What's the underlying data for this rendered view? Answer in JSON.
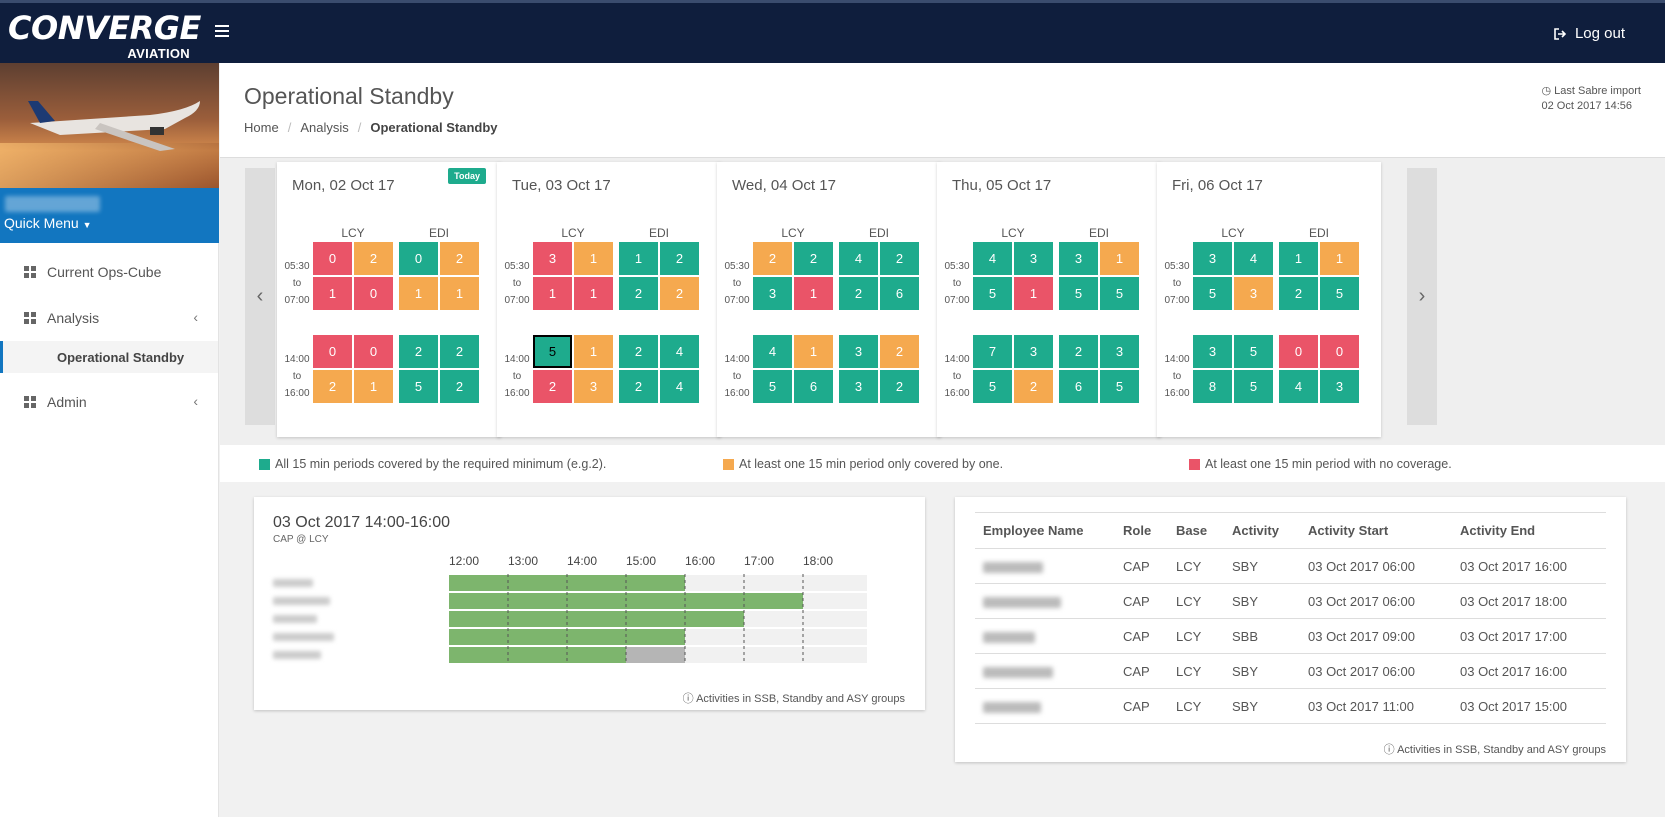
{
  "brand": {
    "name": "CONVERGE",
    "sub": "AVIATION"
  },
  "topbar": {
    "logout_label": "Log out",
    "menu_icon": "hamburger-icon",
    "logout_icon": "sign-out-icon"
  },
  "sidebar": {
    "quick_menu_label": "Quick Menu",
    "items": [
      {
        "label": "Current Ops-Cube",
        "icon": "grid-icon"
      },
      {
        "label": "Analysis",
        "icon": "grid-icon"
      },
      {
        "label": "Operational Standby"
      },
      {
        "label": "Admin",
        "icon": "grid-icon"
      }
    ]
  },
  "header": {
    "title": "Operational Standby",
    "breadcrumb": [
      "Home",
      "Analysis",
      "Operational Standby"
    ],
    "import_label": "Last Sabre import",
    "import_time": "02 Oct 2017 14:56"
  },
  "schedule": {
    "bases": [
      "LCY",
      "EDI"
    ],
    "slots": [
      {
        "start": "05:30",
        "to": "to",
        "end": "07:00"
      },
      {
        "start": "14:00",
        "to": "to",
        "end": "16:00"
      }
    ],
    "today_label": "Today",
    "days": [
      {
        "title": "Mon, 02 Oct 17",
        "today": true,
        "slots": [
          {
            "LCY": [
              [
                0,
                2
              ],
              [
                1,
                0
              ]
            ],
            "EDI": [
              [
                0,
                2
              ],
              [
                1,
                1
              ]
            ],
            "LCYc": [
              [
                "red",
                "orange"
              ],
              [
                "red",
                "red"
              ]
            ],
            "EDIc": [
              [
                "green",
                "orange"
              ],
              [
                "orange",
                "orange"
              ]
            ]
          },
          {
            "LCY": [
              [
                0,
                0
              ],
              [
                2,
                1
              ]
            ],
            "EDI": [
              [
                2,
                2
              ],
              [
                5,
                2
              ]
            ],
            "LCYc": [
              [
                "red",
                "red"
              ],
              [
                "orange",
                "orange"
              ]
            ],
            "EDIc": [
              [
                "green",
                "green"
              ],
              [
                "green",
                "green"
              ]
            ]
          }
        ]
      },
      {
        "title": "Tue, 03 Oct 17",
        "today": false,
        "slots": [
          {
            "LCY": [
              [
                3,
                1
              ],
              [
                1,
                1
              ]
            ],
            "EDI": [
              [
                1,
                2
              ],
              [
                2,
                2
              ]
            ],
            "LCYc": [
              [
                "red",
                "orange"
              ],
              [
                "red",
                "red"
              ]
            ],
            "EDIc": [
              [
                "green",
                "green"
              ],
              [
                "green",
                "orange"
              ]
            ]
          },
          {
            "LCY": [
              [
                5,
                1
              ],
              [
                2,
                3
              ]
            ],
            "EDI": [
              [
                2,
                4
              ],
              [
                2,
                4
              ]
            ],
            "LCYc": [
              [
                "green",
                "orange"
              ],
              [
                "red",
                "orange"
              ]
            ],
            "EDIc": [
              [
                "green",
                "green"
              ],
              [
                "green",
                "green"
              ]
            ],
            "selected": "LCY-0-0"
          }
        ]
      },
      {
        "title": "Wed, 04 Oct 17",
        "today": false,
        "slots": [
          {
            "LCY": [
              [
                2,
                2
              ],
              [
                3,
                1
              ]
            ],
            "EDI": [
              [
                4,
                2
              ],
              [
                2,
                6
              ]
            ],
            "LCYc": [
              [
                "orange",
                "green"
              ],
              [
                "green",
                "red"
              ]
            ],
            "EDIc": [
              [
                "green",
                "green"
              ],
              [
                "green",
                "green"
              ]
            ]
          },
          {
            "LCY": [
              [
                4,
                1
              ],
              [
                5,
                6
              ]
            ],
            "EDI": [
              [
                3,
                2
              ],
              [
                3,
                2
              ]
            ],
            "LCYc": [
              [
                "green",
                "orange"
              ],
              [
                "green",
                "green"
              ]
            ],
            "EDIc": [
              [
                "green",
                "orange"
              ],
              [
                "green",
                "green"
              ]
            ]
          }
        ]
      },
      {
        "title": "Thu, 05 Oct 17",
        "today": false,
        "slots": [
          {
            "LCY": [
              [
                4,
                3
              ],
              [
                5,
                1
              ]
            ],
            "EDI": [
              [
                3,
                1
              ],
              [
                5,
                5
              ]
            ],
            "LCYc": [
              [
                "green",
                "green"
              ],
              [
                "green",
                "red"
              ]
            ],
            "EDIc": [
              [
                "green",
                "orange"
              ],
              [
                "green",
                "green"
              ]
            ]
          },
          {
            "LCY": [
              [
                7,
                3
              ],
              [
                5,
                2
              ]
            ],
            "EDI": [
              [
                2,
                3
              ],
              [
                6,
                5
              ]
            ],
            "LCYc": [
              [
                "green",
                "green"
              ],
              [
                "green",
                "orange"
              ]
            ],
            "EDIc": [
              [
                "green",
                "green"
              ],
              [
                "green",
                "green"
              ]
            ]
          }
        ]
      },
      {
        "title": "Fri, 06 Oct 17",
        "today": false,
        "slots": [
          {
            "LCY": [
              [
                3,
                4
              ],
              [
                5,
                3
              ]
            ],
            "EDI": [
              [
                1,
                1
              ],
              [
                2,
                5
              ]
            ],
            "LCYc": [
              [
                "green",
                "green"
              ],
              [
                "green",
                "orange"
              ]
            ],
            "EDIc": [
              [
                "green",
                "orange"
              ],
              [
                "green",
                "green"
              ]
            ]
          },
          {
            "LCY": [
              [
                3,
                5
              ],
              [
                8,
                5
              ]
            ],
            "EDI": [
              [
                0,
                0
              ],
              [
                4,
                3
              ]
            ],
            "LCYc": [
              [
                "green",
                "green"
              ],
              [
                "green",
                "green"
              ]
            ],
            "EDIc": [
              [
                "red",
                "red"
              ],
              [
                "green",
                "green"
              ]
            ]
          }
        ]
      }
    ]
  },
  "legend": [
    {
      "color": "#1eab8d",
      "text": "All 15 min periods covered by the required minimum (e.g.2)."
    },
    {
      "color": "#f5a94f",
      "text": "At least one 15 min period only covered by one."
    },
    {
      "color": "#ea5468",
      "text": "At least one 15 min period with no coverage."
    }
  ],
  "colors": {
    "green": "#1eab8d",
    "orange": "#f5a94f",
    "red": "#ea5468",
    "bar": "#7db56d",
    "bar_grey": "#b5b5b5"
  },
  "gantt": {
    "title": "03 Oct 2017 14:00-16:00",
    "subtitle": "CAP @ LCY",
    "hours": [
      "12:00",
      "13:00",
      "14:00",
      "15:00",
      "16:00",
      "17:00",
      "18:00"
    ],
    "axis_start_hour": 12,
    "axis_end_hour": 19.0,
    "rows": [
      {
        "start": 12,
        "end": 16,
        "grey_end": null
      },
      {
        "start": 12,
        "end": 18,
        "grey_end": null
      },
      {
        "start": 12,
        "end": 17,
        "grey_end": null
      },
      {
        "start": 12,
        "end": 16,
        "grey_end": null
      },
      {
        "start": 12,
        "end": 15,
        "grey_end": 16
      }
    ],
    "note": "Activities in SSB, Standby and ASY groups",
    "note_icon": "info-icon"
  },
  "employees": {
    "headers": [
      "Employee Name",
      "Role",
      "Base",
      "Activity",
      "Activity Start",
      "Activity End"
    ],
    "rows": [
      {
        "role": "CAP",
        "base": "LCY",
        "activity": "SBY",
        "start": "03 Oct 2017 06:00",
        "end": "03 Oct 2017 16:00"
      },
      {
        "role": "CAP",
        "base": "LCY",
        "activity": "SBY",
        "start": "03 Oct 2017 06:00",
        "end": "03 Oct 2017 18:00"
      },
      {
        "role": "CAP",
        "base": "LCY",
        "activity": "SBB",
        "start": "03 Oct 2017 09:00",
        "end": "03 Oct 2017 17:00"
      },
      {
        "role": "CAP",
        "base": "LCY",
        "activity": "SBY",
        "start": "03 Oct 2017 06:00",
        "end": "03 Oct 2017 16:00"
      },
      {
        "role": "CAP",
        "base": "LCY",
        "activity": "SBY",
        "start": "03 Oct 2017 11:00",
        "end": "03 Oct 2017 15:00"
      }
    ],
    "note": "Activities in SSB, Standby and ASY groups"
  }
}
